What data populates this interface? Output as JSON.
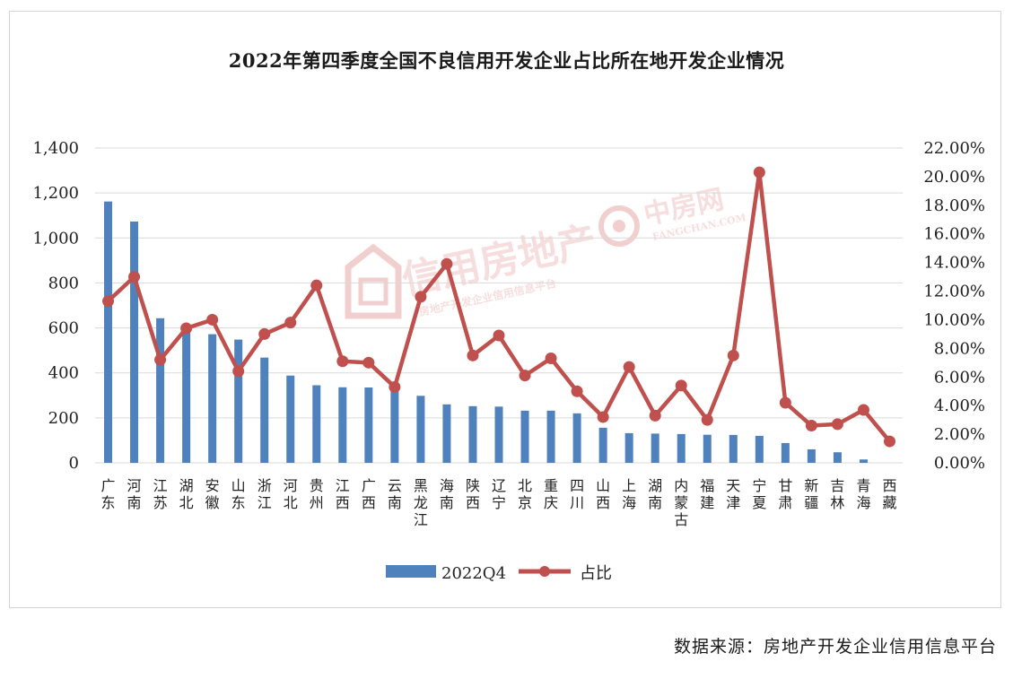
{
  "chart_data": {
    "type": "bar",
    "title": "2022年第四季度全国不良信用开发企业占比所在地开发企业情况",
    "categories": [
      "广东",
      "河南",
      "江苏",
      "湖北",
      "安徽",
      "山东",
      "浙江",
      "河北",
      "贵州",
      "江西",
      "广西",
      "云南",
      "黑龙江",
      "海南",
      "陕西",
      "辽宁",
      "北京",
      "重庆",
      "四川",
      "山西",
      "上海",
      "湖南",
      "内蒙古",
      "福建",
      "天津",
      "宁夏",
      "甘肃",
      "新疆",
      "吉林",
      "青海",
      "西藏"
    ],
    "series": [
      {
        "name": "2022Q4",
        "type": "bar",
        "axis": "left",
        "color": "#4f81bd",
        "values": [
          1162,
          1073,
          643,
          600,
          572,
          548,
          468,
          388,
          345,
          336,
          335,
          330,
          298,
          260,
          252,
          250,
          232,
          232,
          220,
          156,
          132,
          130,
          128,
          125,
          124,
          120,
          88,
          60,
          47,
          15,
          0
        ]
      },
      {
        "name": "占比",
        "type": "line",
        "axis": "right",
        "color": "#c0504d",
        "values": [
          11.3,
          13.0,
          7.2,
          9.4,
          10.0,
          6.4,
          9.0,
          9.8,
          12.4,
          7.1,
          7.0,
          5.3,
          11.6,
          13.9,
          7.5,
          8.9,
          6.1,
          7.3,
          5.0,
          3.2,
          6.7,
          3.3,
          5.4,
          3.0,
          7.5,
          20.3,
          4.2,
          2.6,
          2.7,
          3.7,
          1.5
        ]
      }
    ],
    "ylim": [
      0,
      1400
    ],
    "yticks": [
      "0",
      "200",
      "400",
      "600",
      "800",
      "1,000",
      "1,200",
      "1,400"
    ],
    "y2lim": [
      0,
      22
    ],
    "y2ticks": [
      "0.00%",
      "2.00%",
      "4.00%",
      "6.00%",
      "8.00%",
      "10.00%",
      "12.00%",
      "14.00%",
      "16.00%",
      "18.00%",
      "20.00%",
      "22.00%"
    ],
    "legend": {
      "position": "bottom",
      "items": [
        "2022Q4",
        "占比"
      ]
    },
    "grid": true
  },
  "watermarks": {
    "left_text": "信用房地产",
    "left_sub": "房地产开发企业信用信息平台",
    "right_text": "中房网",
    "right_sub": "FANGCHAN.COM"
  },
  "source": "数据来源：房地产开发企业信用信息平台"
}
